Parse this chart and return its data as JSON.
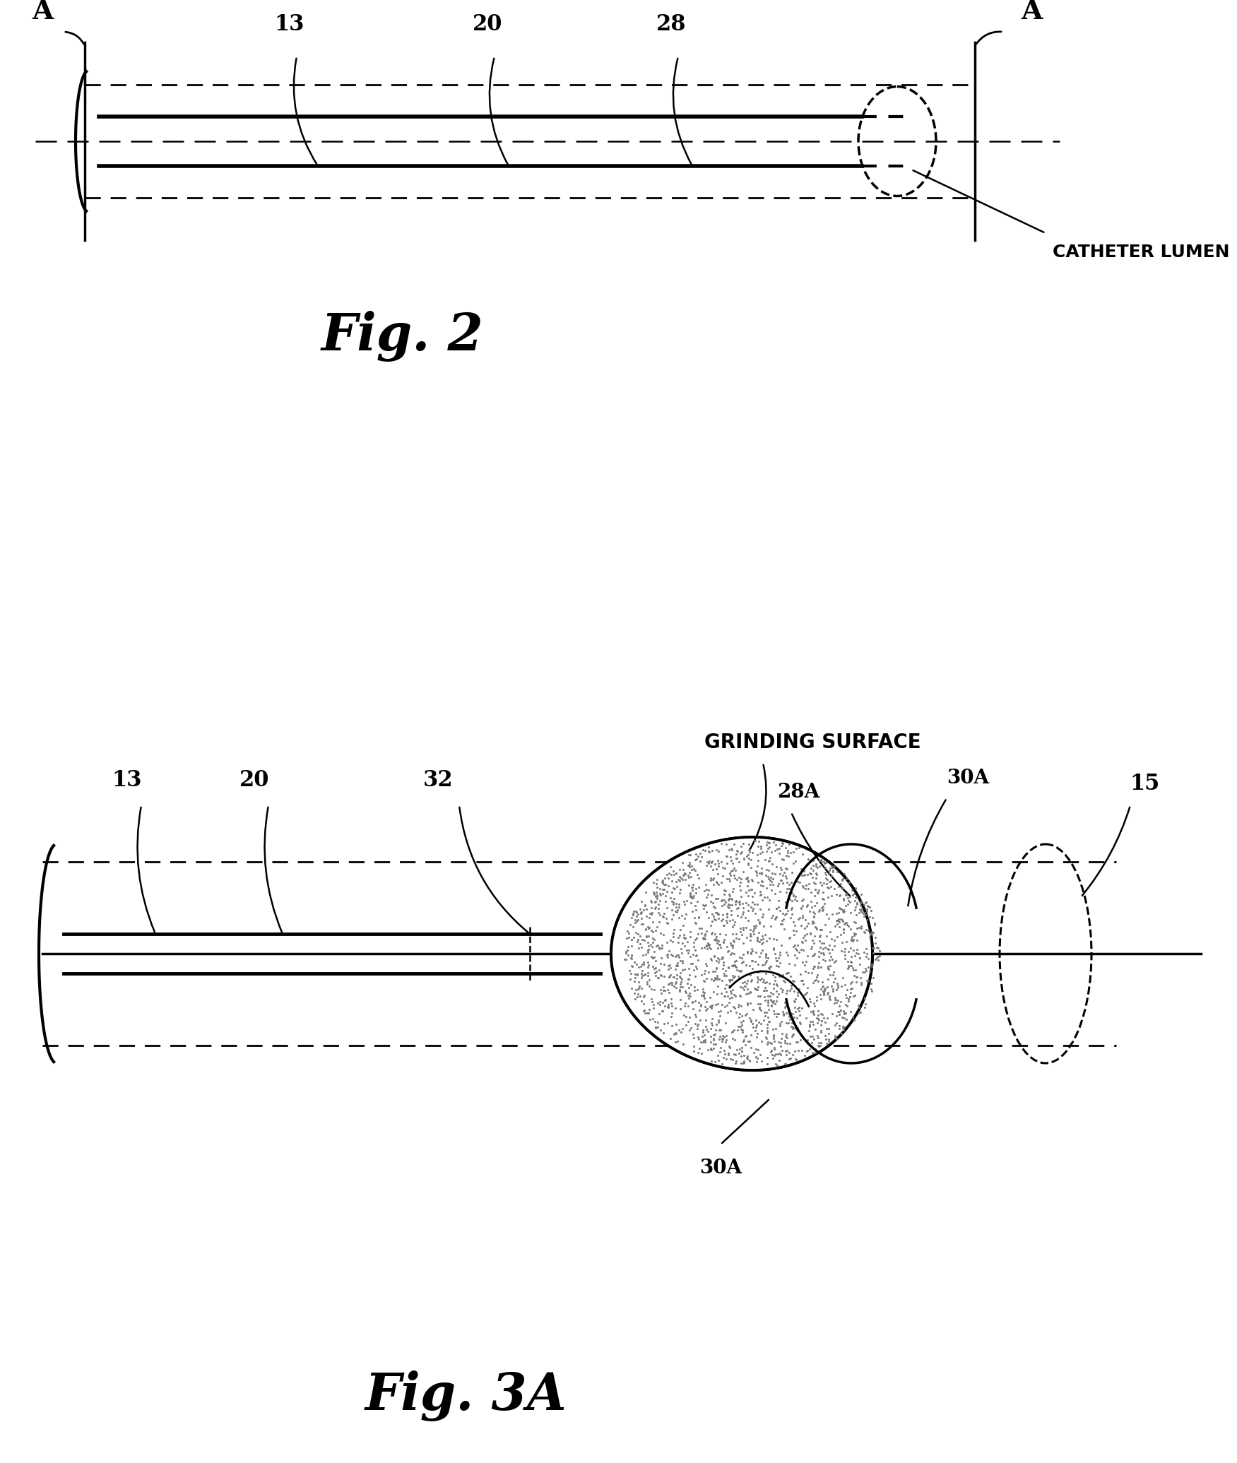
{
  "bg_color": "#ffffff",
  "line_color": "#000000",
  "fig2_title": "Fig. 2",
  "fig3a_title": "Fig. 3A",
  "label_A": "A",
  "label_13": "13",
  "label_20": "20",
  "label_28": "28",
  "label_28A": "28A",
  "label_30A": "30A",
  "label_32": "32",
  "label_15": "15",
  "label_catheter": "CATHETER LUMEN",
  "label_grinding": "GRINDING SURFACE"
}
